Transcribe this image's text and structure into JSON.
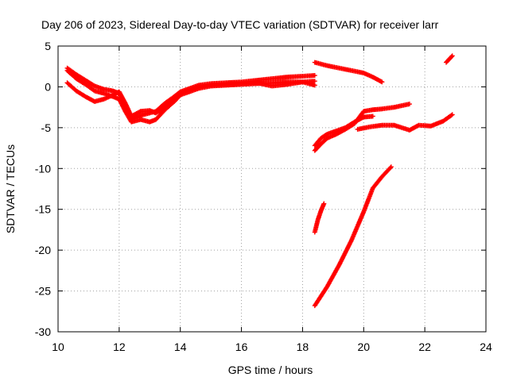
{
  "chart_data": {
    "type": "scatter",
    "title": "Day 206 of 2023, Sidereal Day-to-day VTEC variation (SDTVAR) for receiver larr",
    "xlabel": "GPS time / hours",
    "ylabel": "SDTVAR / TECUs",
    "xlim": [
      10,
      24
    ],
    "ylim": [
      -30,
      5
    ],
    "xticks": [
      "10",
      "12",
      "14",
      "16",
      "18",
      "20",
      "22",
      "24"
    ],
    "yticks": [
      "5",
      "0",
      "-5",
      "-10",
      "-15",
      "-20",
      "-25",
      "-30"
    ],
    "grid": true,
    "marker": "+",
    "color": "#ff0000",
    "series": [
      {
        "x": [
          10.3,
          10.6,
          10.9,
          11.2,
          11.5,
          11.8,
          12.0,
          12.2,
          12.4,
          12.7,
          13.0,
          13.2,
          13.5,
          13.8,
          14.0,
          14.3,
          14.6,
          15.0,
          15.5,
          16.0,
          16.5,
          17.0,
          17.5,
          18.0,
          18.4
        ],
        "y": [
          2.3,
          1.5,
          0.8,
          0.1,
          -0.3,
          -0.5,
          -0.8,
          -2.5,
          -4.0,
          -3.5,
          -3.2,
          -3.0,
          -2.0,
          -1.2,
          -0.6,
          -0.2,
          0.2,
          0.4,
          0.5,
          0.6,
          0.8,
          1.0,
          1.2,
          1.3,
          1.4
        ]
      },
      {
        "x": [
          10.3,
          10.6,
          10.9,
          11.2,
          11.5,
          11.8,
          12.0,
          12.2,
          12.4,
          12.7,
          13.0,
          13.2,
          13.5,
          13.8,
          14.0,
          14.3,
          14.6,
          15.0,
          15.5,
          16.0,
          16.5,
          17.0,
          17.5,
          18.0,
          18.4
        ],
        "y": [
          2.0,
          1.0,
          0.3,
          -0.5,
          -0.8,
          -1.2,
          -1.5,
          -3.0,
          -4.3,
          -4.0,
          -4.3,
          -4.0,
          -2.8,
          -1.8,
          -1.0,
          -0.6,
          -0.2,
          0.1,
          0.2,
          0.3,
          0.4,
          0.5,
          0.6,
          0.6,
          0.7
        ]
      },
      {
        "x": [
          10.3,
          10.6,
          10.9,
          11.2,
          11.5,
          11.8,
          12.0,
          12.2,
          12.4,
          12.7,
          13.0,
          13.2,
          13.5,
          13.8,
          14.0,
          14.3,
          14.6,
          15.0,
          15.5,
          16.0,
          16.5,
          17.0,
          17.5,
          18.0,
          18.4
        ],
        "y": [
          0.5,
          -0.5,
          -1.2,
          -1.8,
          -1.5,
          -1.0,
          -0.6,
          -2.0,
          -3.6,
          -3.0,
          -2.9,
          -3.2,
          -2.5,
          -1.5,
          -0.8,
          -0.4,
          0.0,
          0.2,
          0.3,
          0.4,
          0.5,
          0.1,
          0.3,
          0.6,
          0.2
        ]
      },
      {
        "x": [
          18.4,
          18.8,
          19.2,
          19.6,
          20.0,
          20.3,
          20.6
        ],
        "y": [
          3.0,
          2.6,
          2.3,
          2.0,
          1.7,
          1.2,
          0.6
        ]
      },
      {
        "x": [
          18.4,
          18.6,
          18.8,
          19.1,
          19.4,
          19.7,
          20.0,
          20.3,
          20.6,
          21.0,
          21.5
        ],
        "y": [
          -7.8,
          -7.0,
          -6.3,
          -5.8,
          -5.2,
          -4.5,
          -3.0,
          -2.8,
          -2.7,
          -2.5,
          -2.1
        ]
      },
      {
        "x": [
          18.4,
          18.6,
          18.8,
          19.1,
          19.4,
          19.7,
          20.0,
          20.3
        ],
        "y": [
          -7.2,
          -6.3,
          -5.8,
          -5.4,
          -5.0,
          -4.3,
          -3.7,
          -3.6
        ]
      },
      {
        "x": [
          19.8,
          20.2,
          20.6,
          21.0,
          21.5,
          21.8,
          22.2,
          22.6,
          22.9
        ],
        "y": [
          -5.2,
          -4.9,
          -4.7,
          -4.7,
          -5.3,
          -4.7,
          -4.8,
          -4.2,
          -3.4
        ]
      },
      {
        "x": [
          22.7,
          22.9
        ],
        "y": [
          3.0,
          3.8
        ]
      },
      {
        "x": [
          18.4,
          18.5,
          18.6,
          18.7
        ],
        "y": [
          -17.8,
          -16.3,
          -15.2,
          -14.3
        ]
      },
      {
        "x": [
          18.4,
          18.8,
          19.2,
          19.6,
          20.0,
          20.3,
          20.6,
          20.9
        ],
        "y": [
          -26.8,
          -24.5,
          -21.8,
          -18.8,
          -15.3,
          -12.4,
          -11.0,
          -9.8
        ]
      }
    ]
  }
}
